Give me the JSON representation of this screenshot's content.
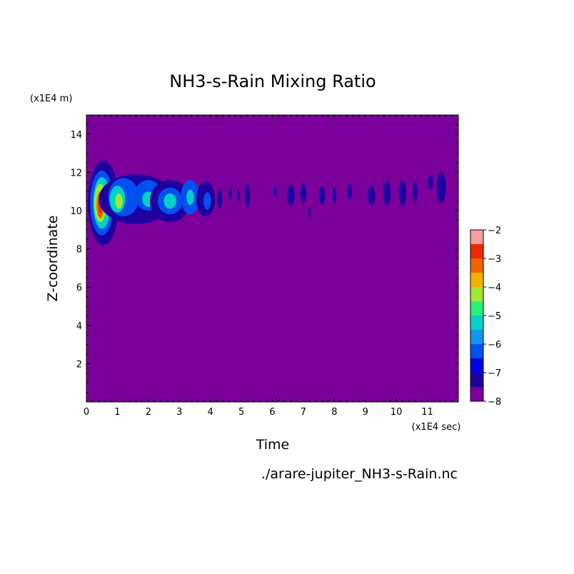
{
  "chart_data": {
    "type": "heatmap",
    "title": "NH3-s-Rain Mixing Ratio",
    "xlabel": "Time",
    "ylabel": "Z-coordinate",
    "x_unit_label": "(x1E4 sec)",
    "y_unit_label": "(x1E4 m)",
    "xlim": [
      0,
      12
    ],
    "ylim": [
      0,
      15
    ],
    "x_ticks": [
      0,
      1,
      2,
      3,
      4,
      5,
      6,
      7,
      8,
      9,
      10,
      11
    ],
    "y_ticks": [
      2,
      4,
      6,
      8,
      10,
      12,
      14
    ],
    "colorbar": {
      "ticks": [
        -2,
        -3,
        -4,
        -5,
        -6,
        -7,
        -8
      ],
      "range": [
        -8,
        -2
      ],
      "levels": [
        {
          "from": -8.0,
          "to": -7.5,
          "color": "#7b009b"
        },
        {
          "from": -7.5,
          "to": -7.0,
          "color": "#1e00a0"
        },
        {
          "from": -7.0,
          "to": -6.5,
          "color": "#0000e6"
        },
        {
          "from": -6.5,
          "to": -6.0,
          "color": "#0050f0"
        },
        {
          "from": -6.0,
          "to": -5.5,
          "color": "#1496f0"
        },
        {
          "from": -5.5,
          "to": -5.0,
          "color": "#00d2c8"
        },
        {
          "from": -5.0,
          "to": -4.5,
          "color": "#28f078"
        },
        {
          "from": -4.5,
          "to": -4.0,
          "color": "#a0e632"
        },
        {
          "from": -4.0,
          "to": -3.5,
          "color": "#f0b400"
        },
        {
          "from": -3.5,
          "to": -3.0,
          "color": "#f06400"
        },
        {
          "from": -3.0,
          "to": -2.5,
          "color": "#f02800"
        },
        {
          "from": -2.5,
          "to": -2.0,
          "color": "#f5a0a0"
        }
      ]
    },
    "background_level": -8,
    "blobs": [
      {
        "x": 0.55,
        "y": 10.4,
        "rx": 0.5,
        "ry": 2.2,
        "level": -7.2
      },
      {
        "x": 0.5,
        "y": 10.4,
        "rx": 0.38,
        "ry": 1.7,
        "level": -6.3
      },
      {
        "x": 0.5,
        "y": 10.4,
        "rx": 0.28,
        "ry": 1.35,
        "level": -5.3
      },
      {
        "x": 0.45,
        "y": 10.4,
        "rx": 0.2,
        "ry": 1.0,
        "level": -4.3
      },
      {
        "x": 0.45,
        "y": 10.3,
        "rx": 0.12,
        "ry": 0.7,
        "level": -3.3
      },
      {
        "x": 0.45,
        "y": 10.3,
        "rx": 0.07,
        "ry": 0.45,
        "level": -2.8
      },
      {
        "x": 1.6,
        "y": 10.6,
        "rx": 1.2,
        "ry": 1.3,
        "level": -7.2
      },
      {
        "x": 1.2,
        "y": 10.7,
        "rx": 0.5,
        "ry": 1.0,
        "level": -6.3
      },
      {
        "x": 1.0,
        "y": 10.6,
        "rx": 0.25,
        "ry": 0.7,
        "level": -5.3
      },
      {
        "x": 1.05,
        "y": 10.5,
        "rx": 0.12,
        "ry": 0.4,
        "level": -4.3
      },
      {
        "x": 2.0,
        "y": 10.8,
        "rx": 0.45,
        "ry": 0.8,
        "level": -6.3
      },
      {
        "x": 2.0,
        "y": 10.6,
        "rx": 0.2,
        "ry": 0.4,
        "level": -5.3
      },
      {
        "x": 2.7,
        "y": 10.5,
        "rx": 0.65,
        "ry": 1.1,
        "level": -7.2
      },
      {
        "x": 2.7,
        "y": 10.5,
        "rx": 0.4,
        "ry": 0.7,
        "level": -6.3
      },
      {
        "x": 2.7,
        "y": 10.5,
        "rx": 0.2,
        "ry": 0.4,
        "level": -5.3
      },
      {
        "x": 3.35,
        "y": 10.7,
        "rx": 0.3,
        "ry": 0.9,
        "level": -6.3
      },
      {
        "x": 3.35,
        "y": 10.7,
        "rx": 0.12,
        "ry": 0.4,
        "level": -5.3
      },
      {
        "x": 3.85,
        "y": 10.6,
        "rx": 0.3,
        "ry": 0.9,
        "level": -7.2
      },
      {
        "x": 3.9,
        "y": 10.5,
        "rx": 0.12,
        "ry": 0.45,
        "level": -6.3
      },
      {
        "x": 4.3,
        "y": 10.6,
        "rx": 0.08,
        "ry": 0.5,
        "level": -7.2
      },
      {
        "x": 4.65,
        "y": 10.9,
        "rx": 0.05,
        "ry": 0.3,
        "level": -7.2
      },
      {
        "x": 4.9,
        "y": 10.8,
        "rx": 0.05,
        "ry": 0.3,
        "level": -7.2
      },
      {
        "x": 5.2,
        "y": 10.8,
        "rx": 0.08,
        "ry": 0.6,
        "level": -7.2
      },
      {
        "x": 6.1,
        "y": 11.0,
        "rx": 0.05,
        "ry": 0.3,
        "level": -7.2
      },
      {
        "x": 6.6,
        "y": 10.8,
        "rx": 0.12,
        "ry": 0.55,
        "level": -7.2
      },
      {
        "x": 7.0,
        "y": 10.9,
        "rx": 0.1,
        "ry": 0.5,
        "level": -7.2
      },
      {
        "x": 7.2,
        "y": 9.9,
        "rx": 0.04,
        "ry": 0.3,
        "level": -7.2
      },
      {
        "x": 7.6,
        "y": 10.8,
        "rx": 0.1,
        "ry": 0.5,
        "level": -7.2
      },
      {
        "x": 8.0,
        "y": 10.8,
        "rx": 0.06,
        "ry": 0.4,
        "level": -7.2
      },
      {
        "x": 8.5,
        "y": 11.0,
        "rx": 0.08,
        "ry": 0.4,
        "level": -7.2
      },
      {
        "x": 9.2,
        "y": 10.8,
        "rx": 0.12,
        "ry": 0.5,
        "level": -7.2
      },
      {
        "x": 9.7,
        "y": 10.9,
        "rx": 0.12,
        "ry": 0.6,
        "level": -7.2
      },
      {
        "x": 10.2,
        "y": 10.9,
        "rx": 0.12,
        "ry": 0.65,
        "level": -7.2
      },
      {
        "x": 10.6,
        "y": 11.0,
        "rx": 0.08,
        "ry": 0.5,
        "level": -7.2
      },
      {
        "x": 11.1,
        "y": 11.5,
        "rx": 0.08,
        "ry": 0.4,
        "level": -7.2
      },
      {
        "x": 11.45,
        "y": 11.2,
        "rx": 0.15,
        "ry": 0.8,
        "level": -7.2
      }
    ],
    "source_label": "./arare-jupiter_NH3-s-Rain.nc"
  }
}
